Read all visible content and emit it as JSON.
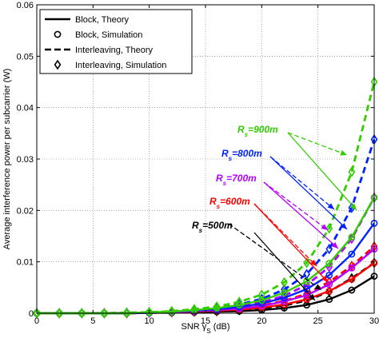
{
  "chart_data": {
    "type": "line",
    "xlabel": "SNR γ",
    "xlabel_sub": "S",
    "xlabel_unit": " (dB)",
    "ylabel": "Average interference power per subcarrier (W)",
    "xlim": [
      0,
      30
    ],
    "ylim": [
      0,
      0.06
    ],
    "xticks": [
      0,
      5,
      10,
      15,
      20,
      25,
      30
    ],
    "yticks": [
      0,
      0.01,
      0.02,
      0.03,
      0.04,
      0.05,
      0.06
    ],
    "xtick_labels": [
      "0",
      "5",
      "10",
      "15",
      "20",
      "25",
      "30"
    ],
    "ytick_labels": [
      "0",
      "0.01",
      "0.02",
      "0.03",
      "0.04",
      "0.05",
      "0.06"
    ],
    "grid": true,
    "legend_position": "top-left",
    "legend": [
      {
        "label": "Block, Theory",
        "style": "solid"
      },
      {
        "label": "Block, Simulation",
        "style": "circle"
      },
      {
        "label": "Interleaving, Theory",
        "style": "dashed"
      },
      {
        "label": "Interleaving, Simulation",
        "style": "diamond"
      }
    ],
    "x": [
      0,
      2,
      4,
      6,
      8,
      10,
      12,
      14,
      16,
      18,
      20,
      22,
      24,
      26,
      28,
      30
    ],
    "series": [
      {
        "group": "Rs=500m",
        "kind": "block",
        "color": "#000000",
        "values": [
          0,
          0,
          0,
          0,
          0,
          0.0001,
          0.0001,
          0.0002,
          0.0003,
          0.0004,
          0.0006,
          0.001,
          0.0016,
          0.0027,
          0.0045,
          0.0072
        ]
      },
      {
        "group": "Rs=500m",
        "kind": "interleaving",
        "color": "#000000",
        "values": [
          0,
          0,
          0,
          0,
          0,
          0.0001,
          0.0002,
          0.0003,
          0.0004,
          0.0006,
          0.001,
          0.0015,
          0.0025,
          0.0042,
          0.0068,
          0.0098
        ]
      },
      {
        "group": "Rs=600m",
        "kind": "block",
        "color": "#ff0000",
        "values": [
          0,
          0,
          0,
          0,
          0,
          0.0001,
          0.0002,
          0.0003,
          0.0005,
          0.0007,
          0.0011,
          0.0017,
          0.0027,
          0.0043,
          0.0066,
          0.0098
        ]
      },
      {
        "group": "Rs=600m",
        "kind": "interleaving",
        "color": "#ff0000",
        "values": [
          0,
          0,
          0,
          0,
          0,
          0.0001,
          0.0002,
          0.0004,
          0.0006,
          0.0009,
          0.0015,
          0.0024,
          0.0038,
          0.0061,
          0.0092,
          0.013
        ]
      },
      {
        "group": "Rs=700m",
        "kind": "block",
        "color": "#b400ff",
        "values": [
          0,
          0,
          0,
          0,
          0,
          0.0001,
          0.0002,
          0.0004,
          0.0006,
          0.0009,
          0.0014,
          0.0023,
          0.0035,
          0.0056,
          0.0088,
          0.0125
        ]
      },
      {
        "group": "Rs=700m",
        "kind": "interleaving",
        "color": "#b400ff",
        "values": [
          0,
          0,
          0,
          0,
          0.0001,
          0.0001,
          0.0003,
          0.0005,
          0.0008,
          0.0013,
          0.0021,
          0.0034,
          0.0055,
          0.009,
          0.0145,
          0.0225
        ]
      },
      {
        "group": "Rs=800m",
        "kind": "block",
        "color": "#0022ff",
        "values": [
          0,
          0,
          0,
          0,
          0,
          0.0001,
          0.0003,
          0.0005,
          0.0008,
          0.0012,
          0.0019,
          0.003,
          0.0047,
          0.0074,
          0.0115,
          0.0175
        ]
      },
      {
        "group": "Rs=800m",
        "kind": "interleaving",
        "color": "#0022ff",
        "values": [
          0,
          0,
          0,
          0,
          0.0001,
          0.0002,
          0.0003,
          0.0006,
          0.001,
          0.0017,
          0.0028,
          0.0046,
          0.0076,
          0.0125,
          0.0205,
          0.0338
        ]
      },
      {
        "group": "Rs=900m",
        "kind": "block",
        "color": "#33cc00",
        "values": [
          0,
          0,
          0,
          0,
          0,
          0.0002,
          0.0003,
          0.0006,
          0.001,
          0.0016,
          0.0025,
          0.004,
          0.0062,
          0.0097,
          0.0148,
          0.0225
        ]
      },
      {
        "group": "Rs=900m",
        "kind": "interleaving",
        "color": "#33cc00",
        "values": [
          0,
          0,
          0,
          0,
          0.0001,
          0.0002,
          0.0004,
          0.0008,
          0.0013,
          0.0022,
          0.0036,
          0.006,
          0.0098,
          0.0165,
          0.0275,
          0.045
        ]
      }
    ],
    "annotations": [
      {
        "text_main": "R",
        "text_sub": "s",
        "text_rest": "=500m",
        "color": "#000000"
      },
      {
        "text_main": "R",
        "text_sub": "s",
        "text_rest": "=600m",
        "color": "#ff0000"
      },
      {
        "text_main": "R",
        "text_sub": "s",
        "text_rest": "=700m",
        "color": "#b400ff"
      },
      {
        "text_main": "R",
        "text_sub": "s",
        "text_rest": "=800m",
        "color": "#0022ff"
      },
      {
        "text_main": "R",
        "text_sub": "s",
        "text_rest": "=900m",
        "color": "#33cc00"
      }
    ]
  }
}
